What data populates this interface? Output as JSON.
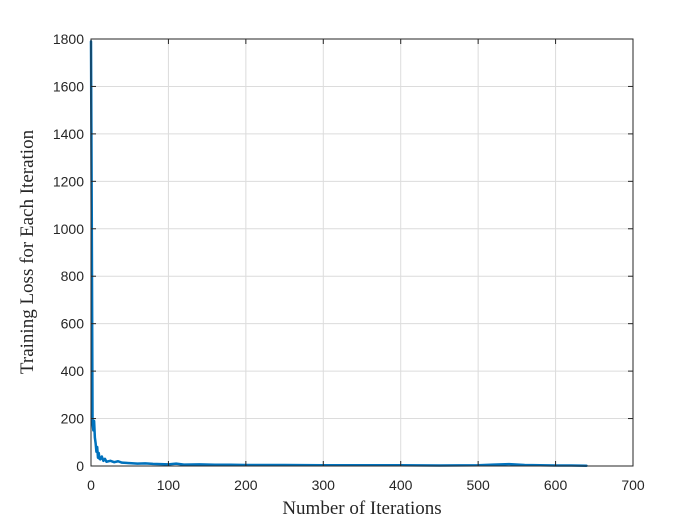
{
  "chart_data": {
    "type": "line",
    "title": "",
    "xlabel": "Number of Iterations",
    "ylabel": "Training Loss for Each Iteration",
    "xlim": [
      0,
      700
    ],
    "ylim": [
      0,
      1800
    ],
    "xticks": [
      0,
      100,
      200,
      300,
      400,
      500,
      600,
      700
    ],
    "yticks": [
      0,
      200,
      400,
      600,
      800,
      1000,
      1200,
      1400,
      1600,
      1800
    ],
    "grid": true,
    "line_color": "#0072BD",
    "series": [
      {
        "x": [
          0,
          1,
          2,
          3,
          4,
          5,
          6,
          7,
          8,
          9,
          10,
          11,
          12,
          14,
          16,
          18,
          20,
          25,
          30,
          35,
          40,
          50,
          60,
          70,
          80,
          90,
          100,
          110,
          120,
          140,
          160,
          180,
          200,
          250,
          300,
          350,
          400,
          450,
          500,
          520,
          540,
          560,
          580,
          600,
          620,
          640
        ],
        "y": [
          1790,
          1050,
          180,
          150,
          190,
          120,
          95,
          60,
          80,
          35,
          55,
          30,
          28,
          40,
          22,
          30,
          18,
          22,
          16,
          20,
          14,
          12,
          10,
          11,
          9,
          8,
          7,
          10,
          6,
          7,
          5,
          5,
          4,
          4,
          3,
          3,
          3,
          2,
          3,
          6,
          8,
          4,
          3,
          2,
          2,
          1
        ]
      }
    ]
  }
}
